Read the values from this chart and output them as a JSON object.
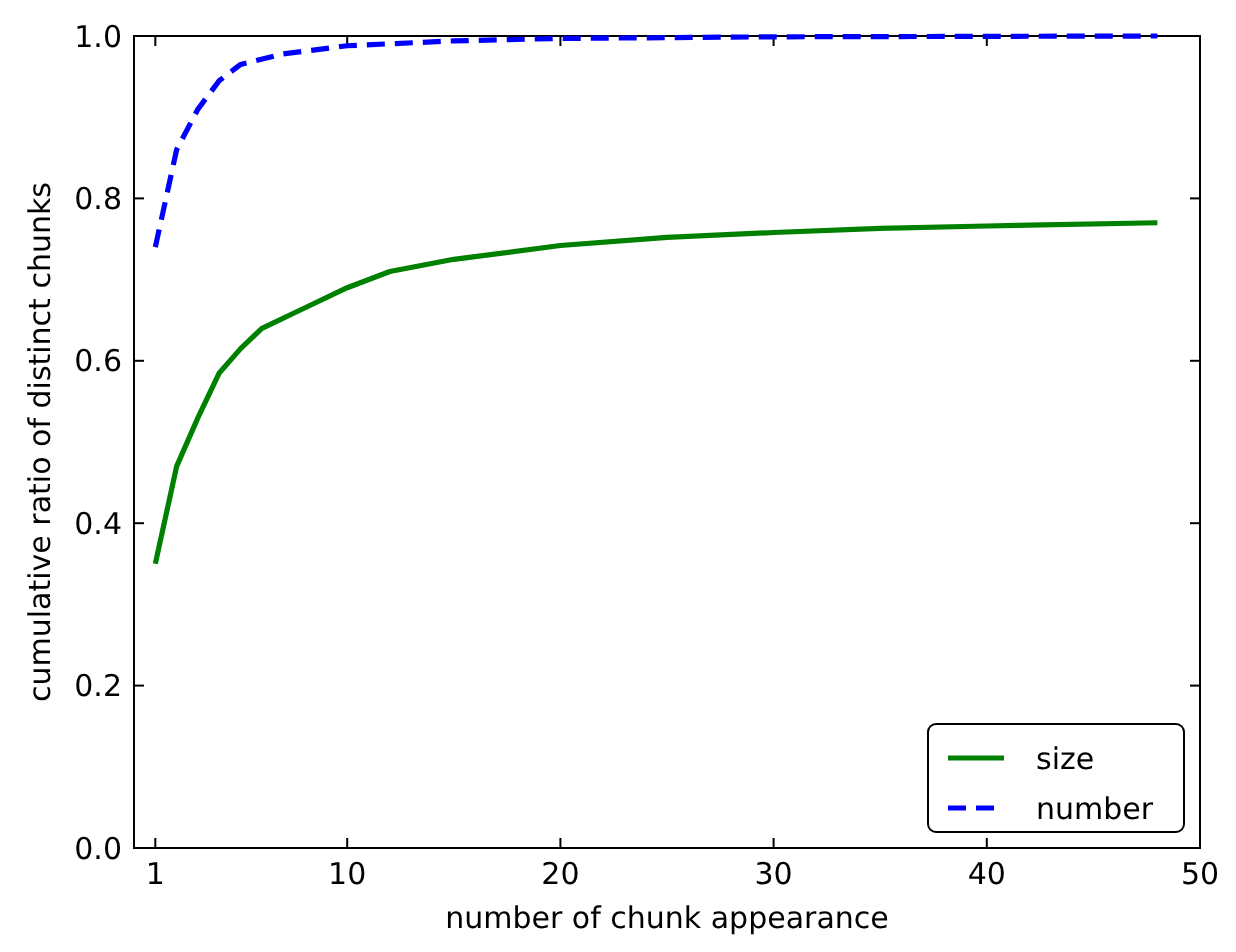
{
  "chart_data": {
    "type": "line",
    "xlabel": "number of chunk appearance",
    "ylabel": "cumulative ratio of distinct chunks",
    "xlim": [
      0,
      50
    ],
    "xticks": [
      1,
      10,
      20,
      30,
      40,
      50
    ],
    "ylim": [
      0,
      1
    ],
    "yticks": [
      {
        "value": 0,
        "label": "0.0"
      },
      0.2,
      0.4,
      0.6,
      0.8,
      {
        "value": 1,
        "label": "1.0"
      }
    ],
    "legend": "bottom right",
    "grid": false,
    "series": [
      {
        "name": "size",
        "color": "#008000",
        "line_style": "solid",
        "x": [
          1,
          2,
          3,
          4,
          5,
          6,
          8,
          10,
          12,
          15,
          20,
          25,
          30,
          35,
          40,
          48
        ],
        "values": [
          0.35,
          0.47,
          0.53,
          0.585,
          0.615,
          0.64,
          0.665,
          0.69,
          0.71,
          0.725,
          0.742,
          0.752,
          0.758,
          0.763,
          0.766,
          0.77
        ]
      },
      {
        "name": "number",
        "color": "#0000ff",
        "line_style": "dashed",
        "x": [
          1,
          1.5,
          2,
          3,
          4,
          5,
          7,
          10,
          15,
          20,
          30,
          48
        ],
        "values": [
          0.74,
          0.8,
          0.86,
          0.91,
          0.945,
          0.965,
          0.978,
          0.988,
          0.994,
          0.997,
          0.999,
          1.0
        ]
      }
    ]
  }
}
